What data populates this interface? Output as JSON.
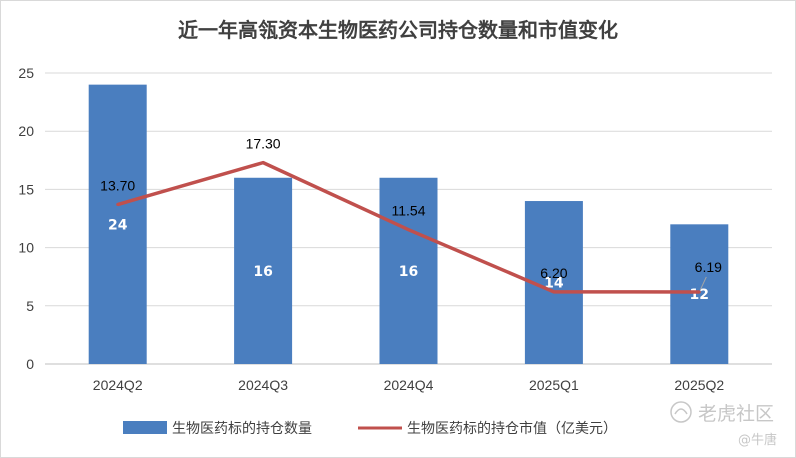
{
  "chart_data": {
    "type": "bar",
    "title": "近一年高瓴资本生物医药公司持仓数量和市值变化",
    "categories": [
      "2024Q2",
      "2024Q3",
      "2024Q4",
      "2025Q1",
      "2025Q2"
    ],
    "ylim": [
      0,
      25
    ],
    "yticks": [
      "0",
      "5",
      "10",
      "15",
      "20",
      "25"
    ],
    "grid": true,
    "legend_position": "bottom",
    "series": [
      {
        "name": "生物医药标的持仓数量",
        "type": "bar",
        "color": "#4a7ebf",
        "values": [
          24,
          16,
          16,
          14,
          12
        ],
        "labels": [
          "24",
          "16",
          "16",
          "14",
          "12"
        ]
      },
      {
        "name": "生物医药标的持仓市值（亿美元）",
        "type": "line",
        "color": "#c0504d",
        "values": [
          13.7,
          17.3,
          11.54,
          6.2,
          6.19
        ],
        "labels": [
          "13.70",
          "17.30",
          "11.54",
          "6.20",
          "6.19"
        ]
      }
    ]
  },
  "watermark": {
    "brand": "老虎社区",
    "author": "@牛唐",
    "icon": "tiger-logo-icon"
  }
}
